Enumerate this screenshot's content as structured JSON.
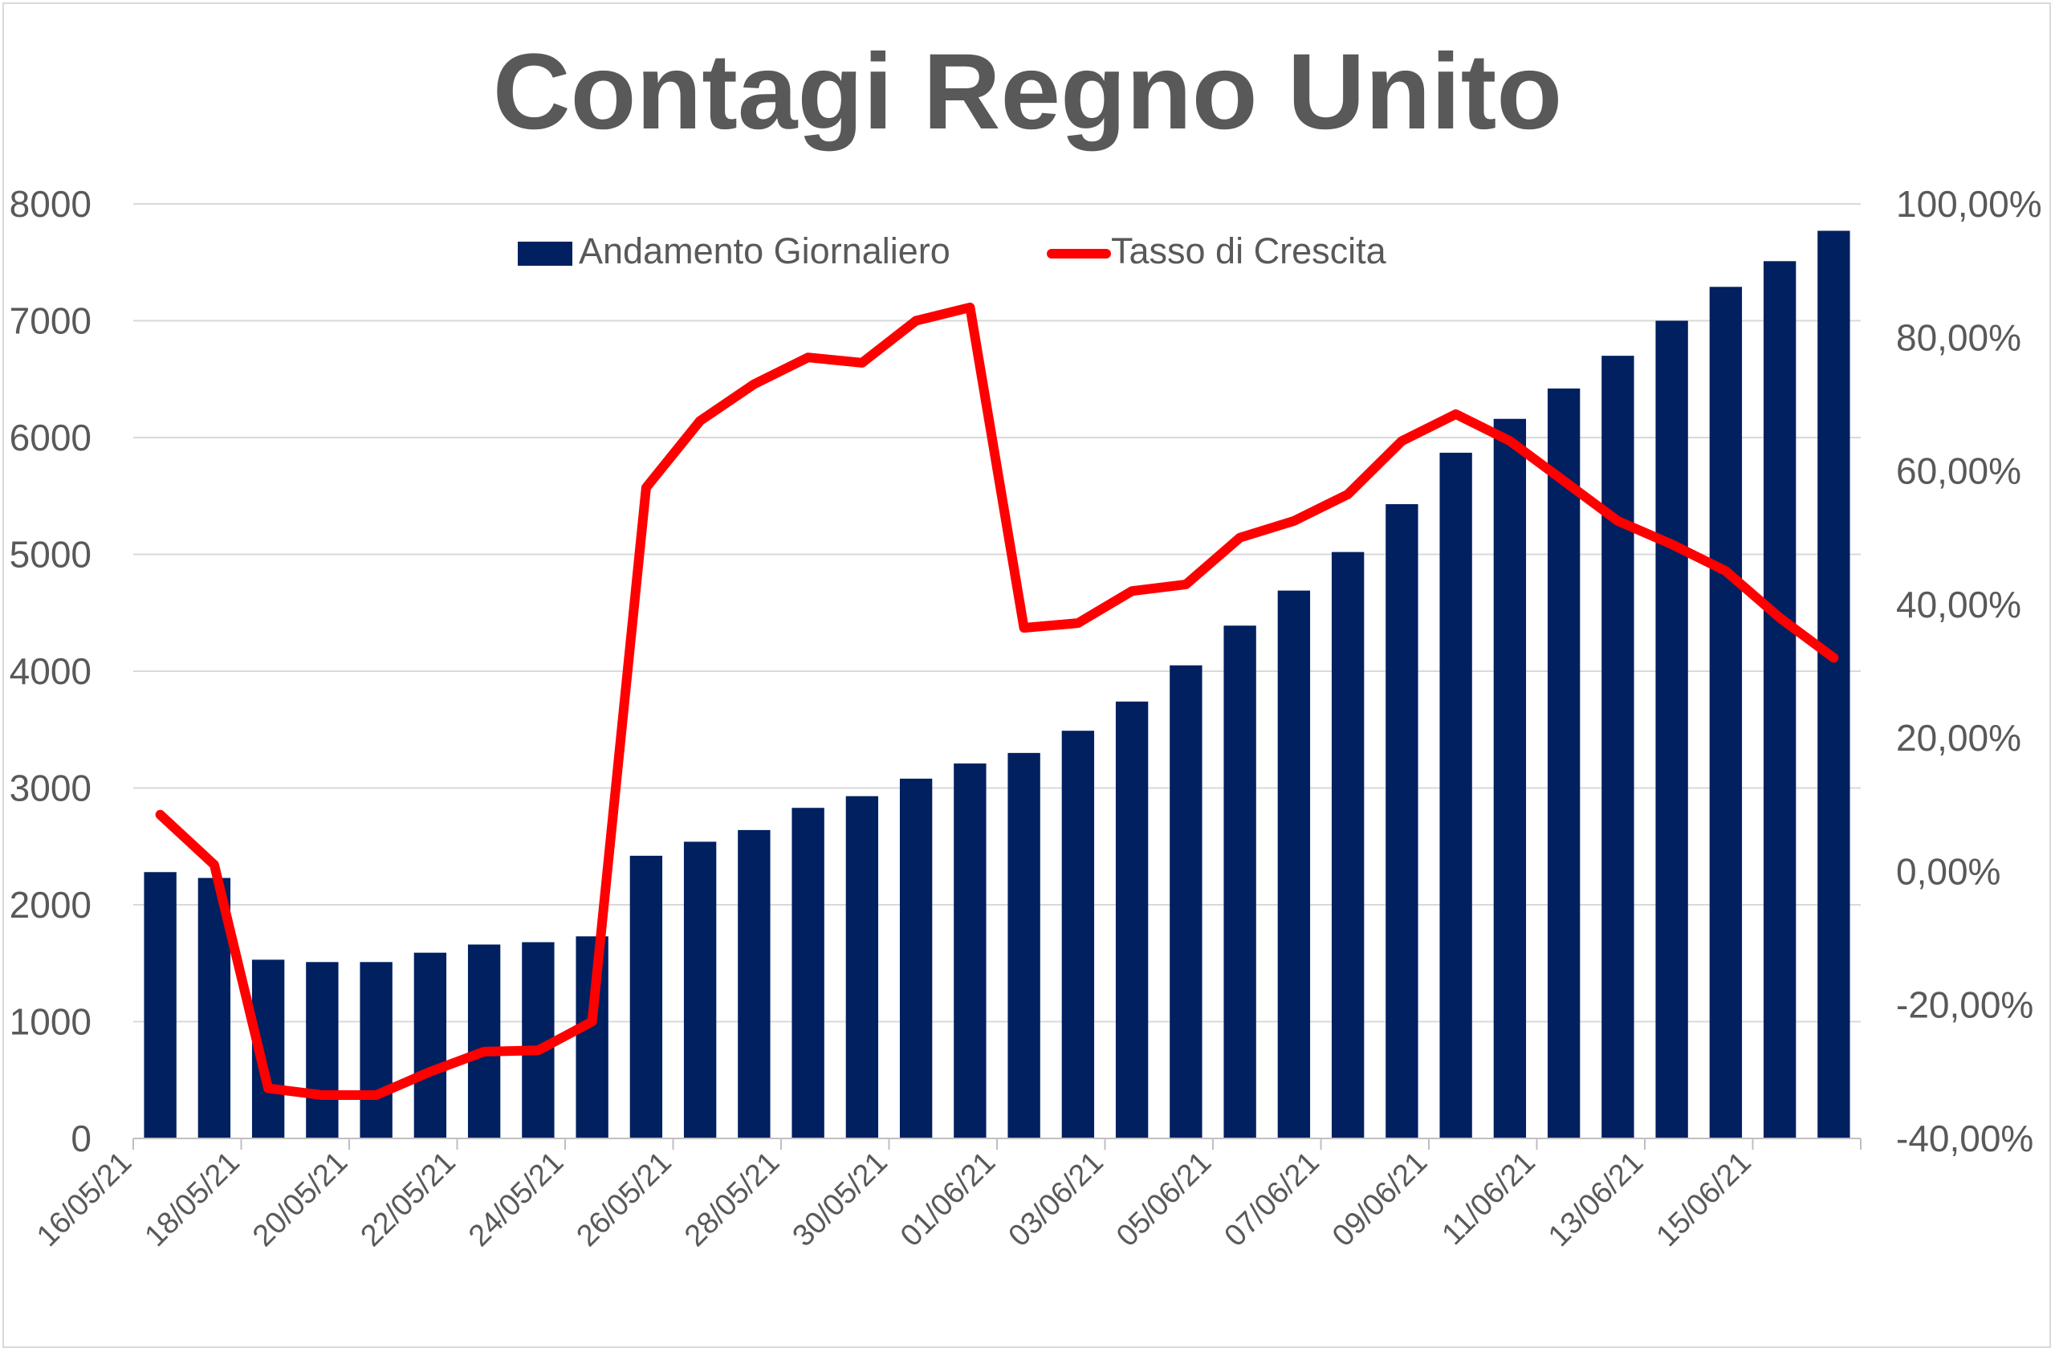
{
  "chart_data": {
    "type": "bar",
    "title": "Contagi Regno Unito",
    "categories": [
      "16/05/21",
      "17/05/21",
      "18/05/21",
      "19/05/21",
      "20/05/21",
      "21/05/21",
      "22/05/21",
      "23/05/21",
      "24/05/21",
      "25/05/21",
      "26/05/21",
      "27/05/21",
      "28/05/21",
      "29/05/21",
      "30/05/21",
      "31/05/21",
      "01/06/21",
      "02/06/21",
      "03/06/21",
      "04/06/21",
      "05/06/21",
      "06/06/21",
      "07/06/21",
      "08/06/21",
      "09/06/21",
      "10/06/21",
      "11/06/21",
      "12/06/21",
      "13/06/21",
      "14/06/21",
      "15/06/21",
      "16/06/21"
    ],
    "x_tick_labels": [
      "16/05/21",
      "18/05/21",
      "20/05/21",
      "22/05/21",
      "24/05/21",
      "26/05/21",
      "28/05/21",
      "30/05/21",
      "01/06/21",
      "03/06/21",
      "05/06/21",
      "07/06/21",
      "09/06/21",
      "11/06/21",
      "13/06/21",
      "15/06/21"
    ],
    "series": [
      {
        "name": "Andamento Giornaliero",
        "type": "bar",
        "axis": "left",
        "color": "#002060",
        "values": [
          2280,
          2230,
          1530,
          1510,
          1510,
          1590,
          1660,
          1680,
          1730,
          2420,
          2540,
          2640,
          2830,
          2930,
          3080,
          3210,
          3300,
          3490,
          3740,
          4050,
          4390,
          4690,
          5020,
          5430,
          5870,
          6160,
          6420,
          6700,
          7000,
          7290,
          7510,
          7770
        ]
      },
      {
        "name": "Tasso di Crescita",
        "type": "line",
        "axis": "right",
        "color": "#ff0000",
        "values": [
          0.085,
          0.01,
          -0.325,
          -0.335,
          -0.335,
          -0.3,
          -0.27,
          -0.268,
          -0.225,
          0.575,
          0.675,
          0.73,
          0.77,
          0.762,
          0.825,
          0.845,
          0.365,
          0.372,
          0.42,
          0.43,
          0.5,
          0.525,
          0.565,
          0.645,
          0.685,
          0.645,
          0.585,
          0.525,
          0.49,
          0.45,
          0.38,
          0.32
        ]
      }
    ],
    "y_left": {
      "min": 0,
      "max": 8000,
      "ticks": [
        "0",
        "1000",
        "2000",
        "3000",
        "4000",
        "5000",
        "6000",
        "7000",
        "8000"
      ]
    },
    "y_right": {
      "min": -0.4,
      "max": 1.0,
      "ticks": [
        "-40,00%",
        "-20,00%",
        "0,00%",
        "20,00%",
        "40,00%",
        "60,00%",
        "80,00%",
        "100,00%"
      ]
    },
    "grid": true,
    "legend_position": "top-center"
  }
}
